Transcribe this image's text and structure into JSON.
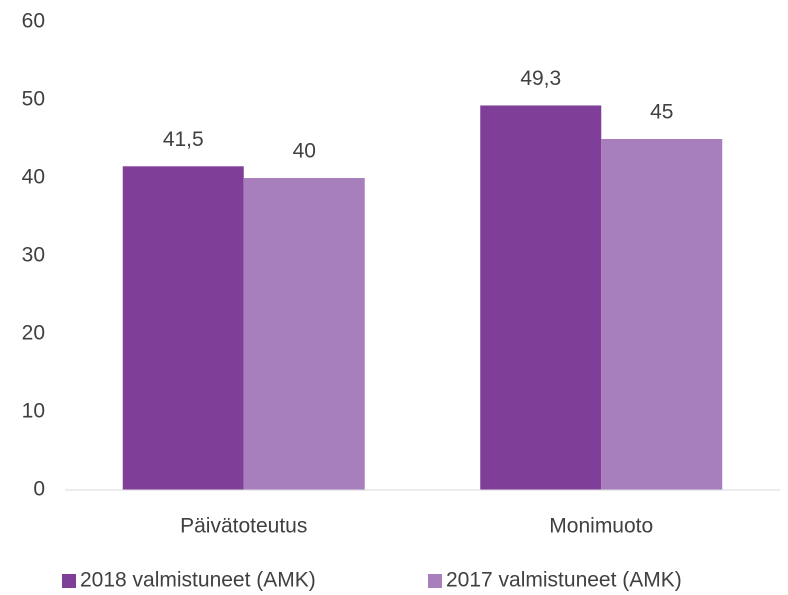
{
  "chart_data": {
    "type": "bar",
    "categories": [
      "Päivätoteutus",
      "Monimuoto"
    ],
    "series": [
      {
        "name": "2018 valmistuneet (AMK)",
        "color": "#7f3f98",
        "values": [
          41.5,
          49.3
        ],
        "value_labels": [
          "41,5",
          "49,3"
        ]
      },
      {
        "name": "2017 valmistuneet (AMK)",
        "color": "#a77fbd",
        "values": [
          40,
          45
        ],
        "value_labels": [
          "40",
          "45"
        ]
      }
    ],
    "ylim": [
      0,
      60
    ],
    "yticks": [
      0,
      10,
      20,
      30,
      40,
      50,
      60
    ],
    "grid": false,
    "legend": "bottom"
  }
}
